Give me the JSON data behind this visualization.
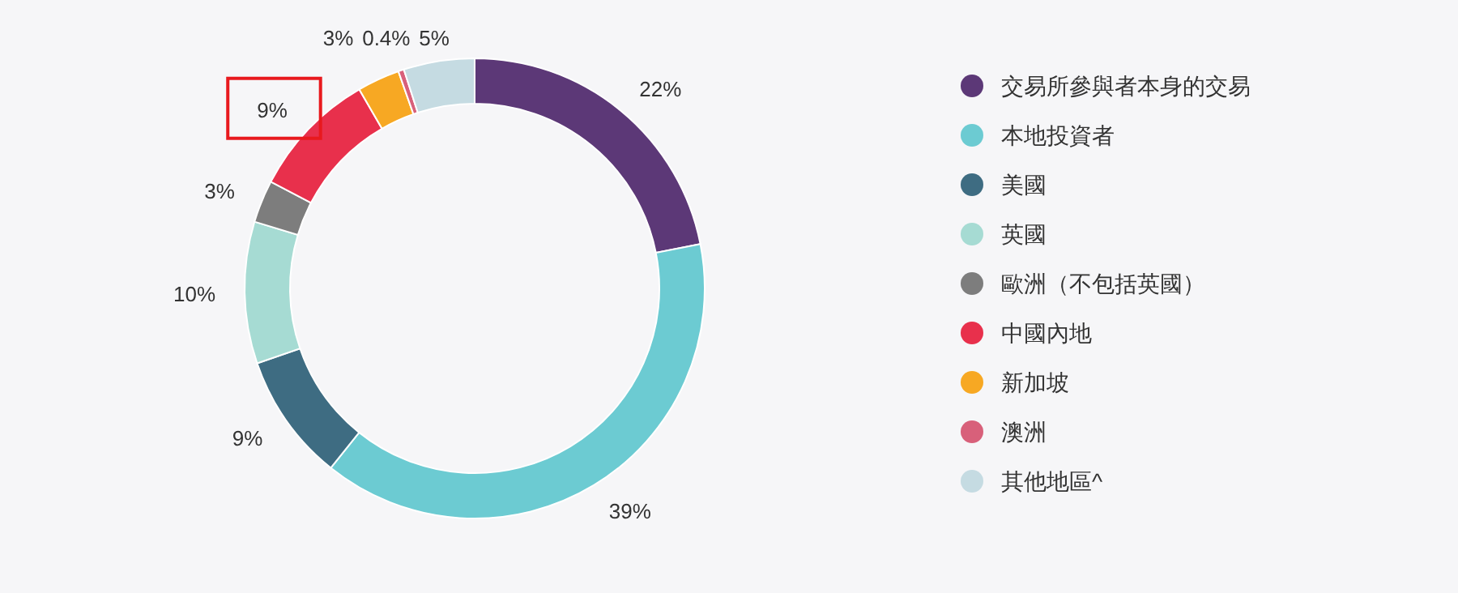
{
  "chart_data": {
    "type": "donut",
    "legend": "right",
    "categories": [
      "交易所參與者本身的交易",
      "本地投資者",
      "美國",
      "英國",
      "歐洲（不包括英國）",
      "中國內地",
      "新加坡",
      "澳洲",
      "其他地區^"
    ],
    "values": [
      22,
      39,
      9,
      10,
      3,
      9,
      3,
      0.4,
      5
    ],
    "value_labels": [
      "22%",
      "39%",
      "9%",
      "10%",
      "3%",
      "9%",
      "3%",
      "0.4%",
      "5%"
    ],
    "colors": [
      "#5c3877",
      "#6ccbd2",
      "#3e6c82",
      "#a6dbd3",
      "#7d7d7d",
      "#e8304c",
      "#f7a823",
      "#d8607a",
      "#c5dbe2"
    ]
  }
}
